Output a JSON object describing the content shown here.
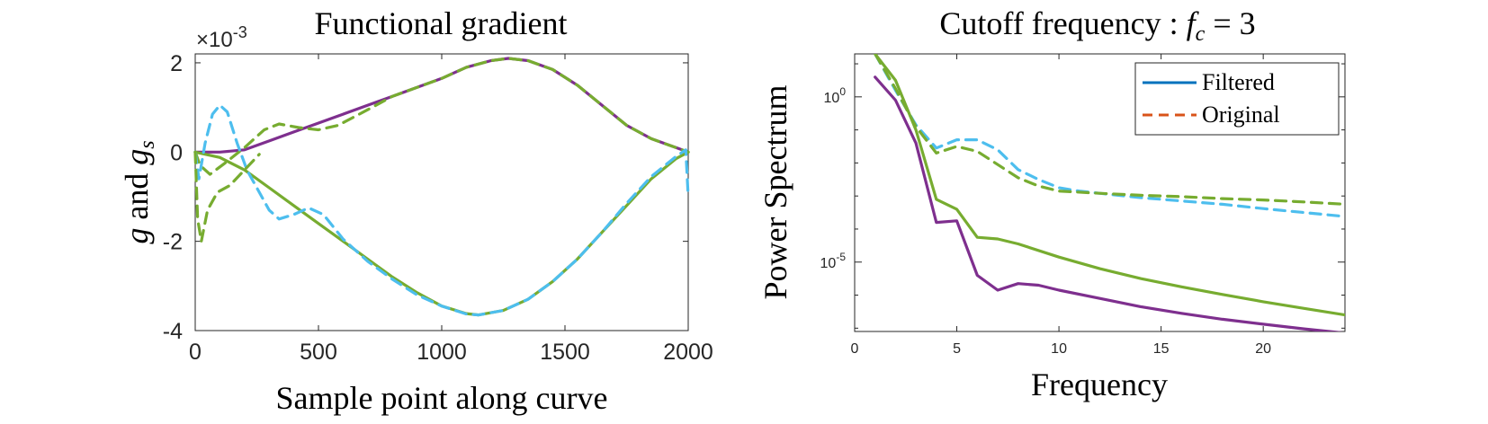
{
  "chart_data": [
    {
      "type": "line",
      "title": "Functional gradient",
      "xlabel": "Sample point along curve",
      "ylabel_main": "g",
      "ylabel_and": "and",
      "ylabel_sub_base": "g",
      "ylabel_sub": "s",
      "exponent_label": "×10",
      "exponent_power": "-3",
      "xlim": [
        0,
        2000
      ],
      "ylim": [
        -4,
        2.2
      ],
      "xticks": [
        0,
        500,
        1000,
        1500,
        2000
      ],
      "xtick_labels": [
        "0",
        "500",
        "1000",
        "1500",
        "2000"
      ],
      "yticks": [
        -4,
        -2,
        0,
        2
      ],
      "ytick_labels": [
        "-4",
        "-2",
        "0",
        "2"
      ],
      "series": [
        {
          "color": "#7E2F8E",
          "dash": "solid",
          "points": [
            [
              0,
              0
            ],
            [
              100,
              0.0
            ],
            [
              200,
              0.05
            ],
            [
              300,
              0.25
            ],
            [
              400,
              0.45
            ],
            [
              500,
              0.65
            ],
            [
              600,
              0.85
            ],
            [
              700,
              1.05
            ],
            [
              800,
              1.25
            ],
            [
              900,
              1.45
            ],
            [
              1000,
              1.65
            ],
            [
              1100,
              1.9
            ],
            [
              1200,
              2.05
            ],
            [
              1270,
              2.1
            ],
            [
              1350,
              2.05
            ],
            [
              1450,
              1.85
            ],
            [
              1550,
              1.5
            ],
            [
              1650,
              1.05
            ],
            [
              1750,
              0.6
            ],
            [
              1850,
              0.3
            ],
            [
              1950,
              0.1
            ],
            [
              2000,
              0.0
            ]
          ]
        },
        {
          "color": "#77AC30",
          "dash": "dashed",
          "points": [
            [
              0,
              0
            ],
            [
              20,
              -0.3
            ],
            [
              60,
              -0.5
            ],
            [
              120,
              -0.25
            ],
            [
              200,
              0.1
            ],
            [
              280,
              0.5
            ],
            [
              340,
              0.63
            ],
            [
              420,
              0.55
            ],
            [
              500,
              0.5
            ],
            [
              580,
              0.6
            ],
            [
              700,
              0.95
            ],
            [
              800,
              1.25
            ],
            [
              900,
              1.45
            ],
            [
              1000,
              1.65
            ],
            [
              1100,
              1.9
            ],
            [
              1200,
              2.05
            ],
            [
              1270,
              2.1
            ],
            [
              1350,
              2.05
            ],
            [
              1450,
              1.85
            ],
            [
              1550,
              1.5
            ],
            [
              1650,
              1.05
            ],
            [
              1750,
              0.6
            ],
            [
              1850,
              0.3
            ],
            [
              1950,
              0.1
            ],
            [
              2000,
              0.0
            ]
          ]
        },
        {
          "color": "#77AC30",
          "dash": "solid",
          "points": [
            [
              0,
              0
            ],
            [
              100,
              -0.12
            ],
            [
              200,
              -0.4
            ],
            [
              300,
              -0.8
            ],
            [
              400,
              -1.2
            ],
            [
              500,
              -1.6
            ],
            [
              600,
              -2.0
            ],
            [
              700,
              -2.4
            ],
            [
              800,
              -2.8
            ],
            [
              900,
              -3.15
            ],
            [
              1000,
              -3.45
            ],
            [
              1100,
              -3.62
            ],
            [
              1150,
              -3.65
            ],
            [
              1250,
              -3.55
            ],
            [
              1350,
              -3.3
            ],
            [
              1450,
              -2.9
            ],
            [
              1550,
              -2.4
            ],
            [
              1650,
              -1.8
            ],
            [
              1750,
              -1.2
            ],
            [
              1850,
              -0.6
            ],
            [
              1950,
              -0.15
            ],
            [
              2000,
              0.0
            ]
          ]
        },
        {
          "color": "#4DBEEE",
          "dash": "dashed",
          "points": [
            [
              0,
              0
            ],
            [
              15,
              -0.6
            ],
            [
              40,
              0.2
            ],
            [
              70,
              0.85
            ],
            [
              100,
              1.05
            ],
            [
              130,
              0.9
            ],
            [
              170,
              0.2
            ],
            [
              210,
              -0.4
            ],
            [
              260,
              -0.9
            ],
            [
              300,
              -1.3
            ],
            [
              340,
              -1.5
            ],
            [
              400,
              -1.4
            ],
            [
              460,
              -1.25
            ],
            [
              520,
              -1.4
            ],
            [
              600,
              -1.95
            ],
            [
              700,
              -2.45
            ],
            [
              800,
              -2.85
            ],
            [
              900,
              -3.2
            ],
            [
              1000,
              -3.45
            ],
            [
              1100,
              -3.63
            ],
            [
              1150,
              -3.65
            ],
            [
              1250,
              -3.55
            ],
            [
              1350,
              -3.3
            ],
            [
              1450,
              -2.9
            ],
            [
              1550,
              -2.4
            ],
            [
              1650,
              -1.8
            ],
            [
              1750,
              -1.15
            ],
            [
              1850,
              -0.55
            ],
            [
              1950,
              -0.1
            ],
            [
              1990,
              0.05
            ],
            [
              2000,
              -1.0
            ]
          ]
        },
        {
          "color": "#77AC30",
          "dash": "dashed",
          "points": [
            [
              0,
              0
            ],
            [
              10,
              -1.5
            ],
            [
              25,
              -2.0
            ],
            [
              50,
              -1.3
            ],
            [
              90,
              -0.9
            ],
            [
              140,
              -0.75
            ],
            [
              200,
              -0.4
            ],
            [
              260,
              -0.05
            ]
          ]
        }
      ]
    },
    {
      "type": "line",
      "title_main": "Cutoff frequency : ",
      "title_f": "f",
      "title_sub": "c",
      "title_eq": " = 3",
      "xlabel": "Frequency",
      "ylabel": "Power Spectrum",
      "yscale": "log",
      "xlim": [
        0,
        24
      ],
      "ylim_exponent": [
        -7.1,
        1.3
      ],
      "xticks": [
        0,
        5,
        10,
        15,
        20
      ],
      "xtick_labels": [
        "0",
        "5",
        "10",
        "15",
        "20"
      ],
      "yticks_exponent": [
        0,
        -5
      ],
      "ytick_labels": [
        {
          "base": "10",
          "exp": "0"
        },
        {
          "base": "10",
          "exp": "-5"
        }
      ],
      "legend": {
        "position": "top-right",
        "entries": [
          {
            "label": "Filtered",
            "color": "#0072BD",
            "dash": "solid"
          },
          {
            "label": "Original",
            "color": "#D95319",
            "dash": "dashed"
          }
        ]
      },
      "series": [
        {
          "color": "#4DBEEE",
          "dash": "dashed",
          "points_log10": [
            [
              1,
              1.3
            ],
            [
              2,
              0.2
            ],
            [
              3,
              -0.85
            ],
            [
              4,
              -1.55
            ],
            [
              5,
              -1.3
            ],
            [
              6,
              -1.3
            ],
            [
              7,
              -1.6
            ],
            [
              8,
              -2.2
            ],
            [
              9,
              -2.5
            ],
            [
              10,
              -2.75
            ],
            [
              11,
              -2.85
            ],
            [
              12,
              -2.92
            ],
            [
              14,
              -3.05
            ],
            [
              16,
              -3.15
            ],
            [
              18,
              -3.25
            ],
            [
              20,
              -3.38
            ],
            [
              22,
              -3.5
            ],
            [
              24,
              -3.62
            ]
          ]
        },
        {
          "color": "#77AC30",
          "dash": "dashed",
          "points_log10": [
            [
              1,
              1.3
            ],
            [
              2,
              0.25
            ],
            [
              3,
              -0.9
            ],
            [
              4,
              -1.7
            ],
            [
              5,
              -1.5
            ],
            [
              6,
              -1.65
            ],
            [
              7,
              -2.05
            ],
            [
              8,
              -2.45
            ],
            [
              9,
              -2.7
            ],
            [
              10,
              -2.85
            ],
            [
              12,
              -2.92
            ],
            [
              14,
              -2.98
            ],
            [
              16,
              -3.02
            ],
            [
              18,
              -3.08
            ],
            [
              20,
              -3.12
            ],
            [
              22,
              -3.18
            ],
            [
              24,
              -3.25
            ]
          ]
        },
        {
          "color": "#77AC30",
          "dash": "solid",
          "points_log10": [
            [
              1,
              1.3
            ],
            [
              2,
              0.5
            ],
            [
              3,
              -1.0
            ],
            [
              4,
              -3.1
            ],
            [
              5,
              -3.4
            ],
            [
              6,
              -4.25
            ],
            [
              7,
              -4.3
            ],
            [
              8,
              -4.45
            ],
            [
              10,
              -4.85
            ],
            [
              12,
              -5.2
            ],
            [
              14,
              -5.5
            ],
            [
              16,
              -5.75
            ],
            [
              18,
              -5.98
            ],
            [
              20,
              -6.2
            ],
            [
              22,
              -6.4
            ],
            [
              24,
              -6.6
            ]
          ]
        },
        {
          "color": "#7E2F8E",
          "dash": "solid",
          "points_log10": [
            [
              1,
              0.6
            ],
            [
              2,
              -0.1
            ],
            [
              3,
              -1.4
            ],
            [
              4,
              -3.8
            ],
            [
              5,
              -3.75
            ],
            [
              6,
              -5.4
            ],
            [
              7,
              -5.85
            ],
            [
              8,
              -5.65
            ],
            [
              9,
              -5.7
            ],
            [
              10,
              -5.85
            ],
            [
              12,
              -6.1
            ],
            [
              14,
              -6.35
            ],
            [
              16,
              -6.55
            ],
            [
              18,
              -6.73
            ],
            [
              20,
              -6.88
            ],
            [
              22,
              -7.02
            ],
            [
              24,
              -7.15
            ]
          ]
        }
      ]
    }
  ]
}
